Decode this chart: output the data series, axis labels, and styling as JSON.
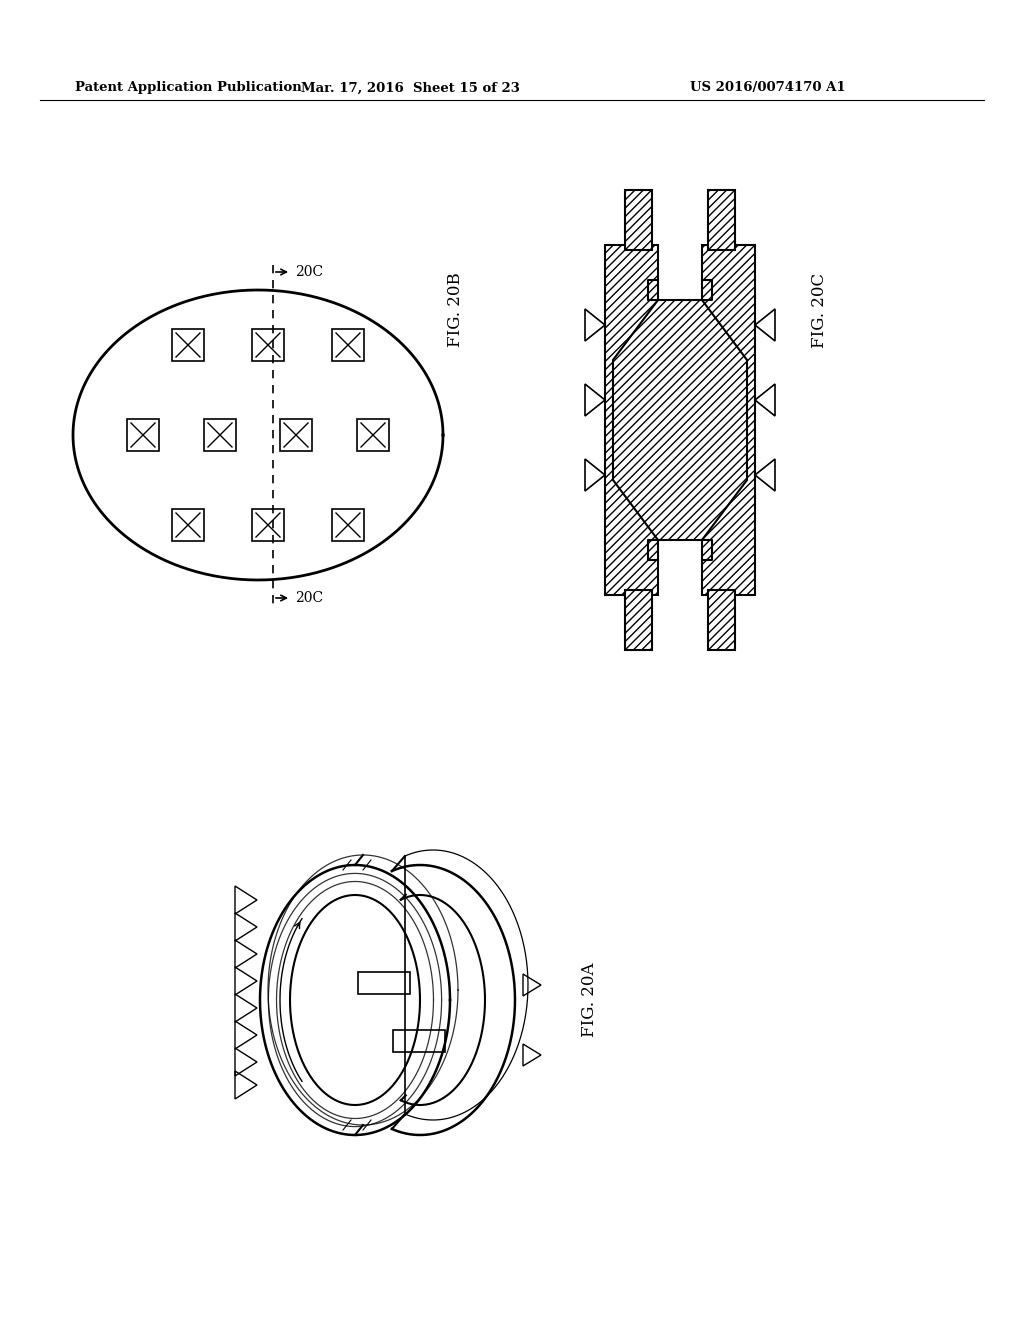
{
  "bg_color": "#ffffff",
  "header_text": "Patent Application Publication",
  "header_date": "Mar. 17, 2016  Sheet 15 of 23",
  "header_patent": "US 2016/0074170 A1",
  "fig20b_label": "FIG. 20B",
  "fig20c_label": "FIG. 20C",
  "fig20a_label": "FIG. 20A",
  "label_20c_top": "20C",
  "label_20c_bottom": "20C"
}
